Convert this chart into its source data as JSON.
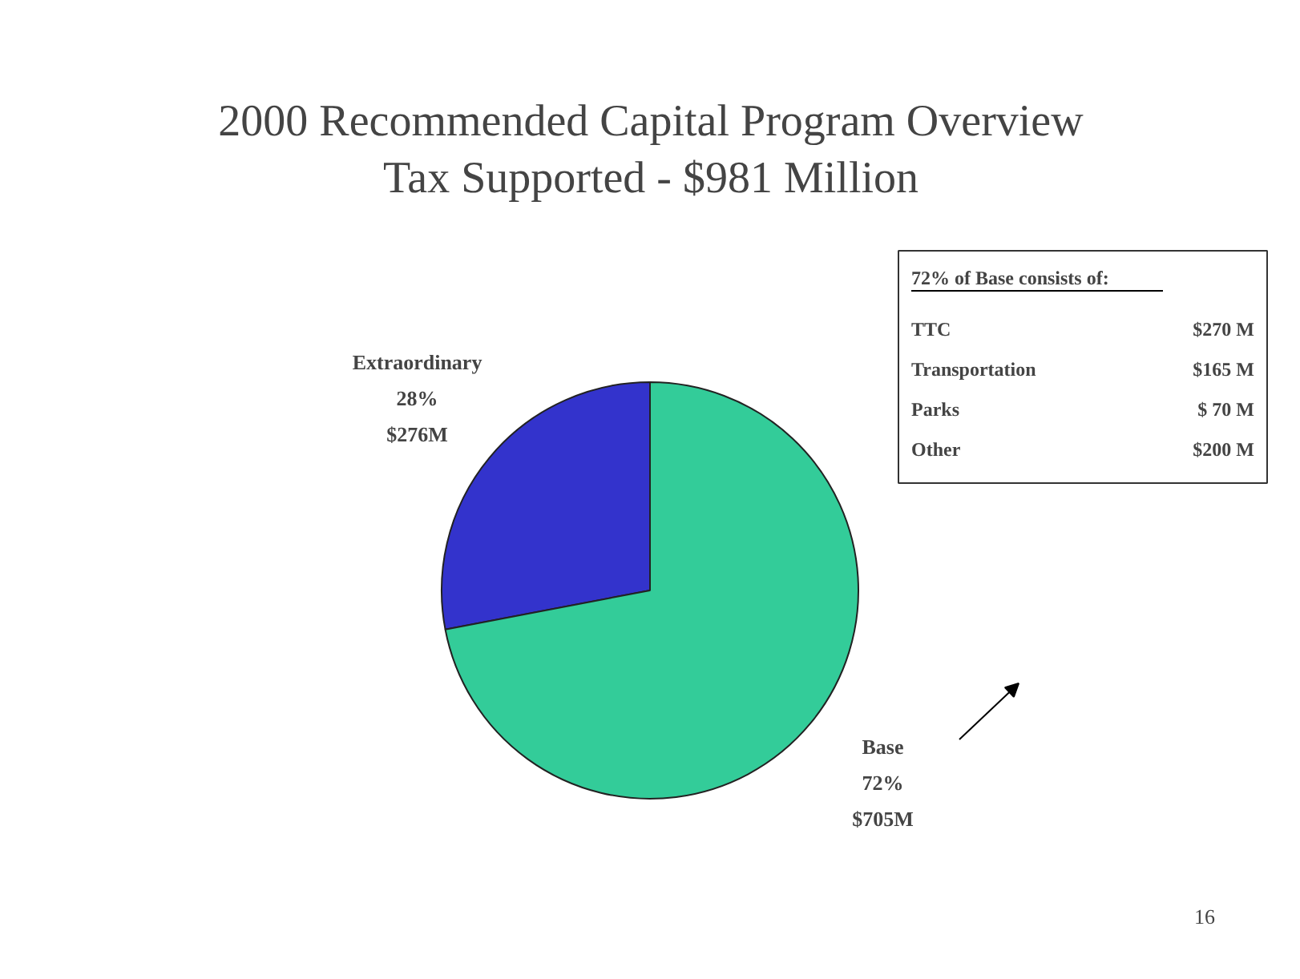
{
  "chart_data": {
    "type": "pie",
    "title": "2000 Recommended Capital Program Overview\nTax Supported - $981 Million",
    "categories": [
      "Extraordinary",
      "Base"
    ],
    "values": [
      28,
      72
    ],
    "value_labels": [
      "28%\n$276M",
      "72%\n$705M"
    ],
    "colors": [
      "#3333cc",
      "#33cc99"
    ],
    "annotations": [
      "72% of Base consists of:",
      "TTC",
      "$270 M",
      "Transportation",
      "$165 M",
      "Parks",
      "$ 70 M",
      "Other",
      "$200 M",
      "16"
    ]
  }
}
